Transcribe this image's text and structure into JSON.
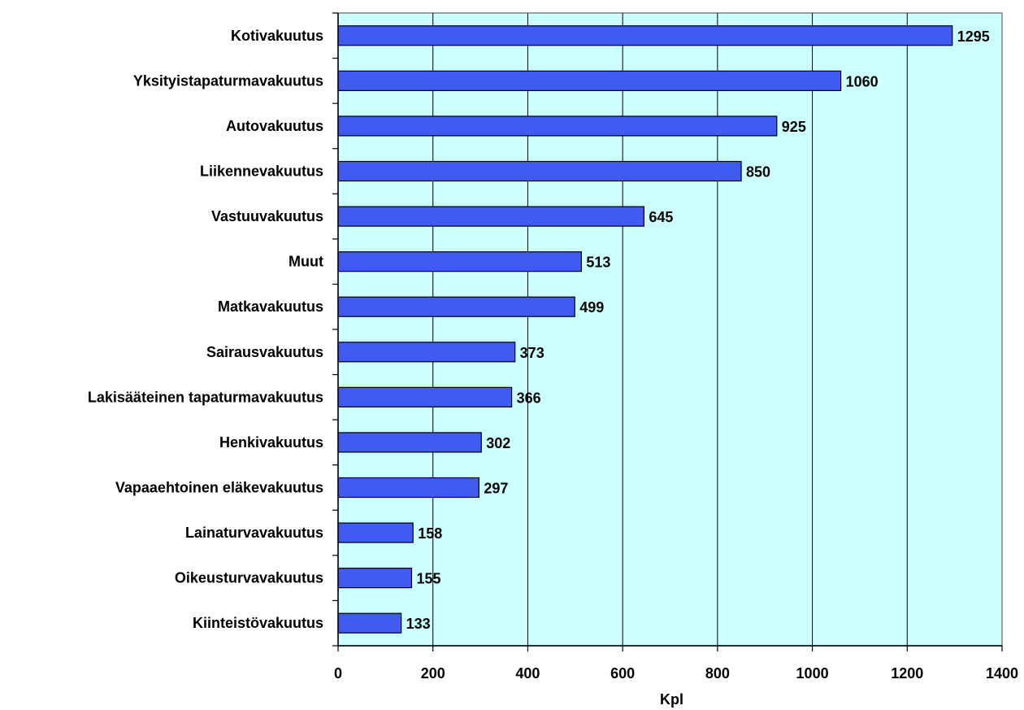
{
  "chart_data": {
    "type": "bar",
    "orientation": "horizontal",
    "categories": [
      "Kotivakuutus",
      "Yksityistapaturmavakuutus",
      "Autovakuutus",
      "Liikennevakuutus",
      "Vastuuvakuutus",
      "Muut",
      "Matkavakuutus",
      "Sairausvakuutus",
      "Lakisääteinen tapaturmavakuutus",
      "Henkivakuutus",
      "Vapaaehtoinen eläkevakuutus",
      "Lainaturvavakuutus",
      "Oikeusturvavakuutus",
      "Kiinteistövakuutus"
    ],
    "values": [
      1295,
      1060,
      925,
      850,
      645,
      513,
      499,
      373,
      366,
      302,
      297,
      158,
      155,
      133
    ],
    "xlabel": "Kpl",
    "ylabel": "",
    "xlim": [
      0,
      1400
    ],
    "xticks": [
      "0",
      "200",
      "400",
      "600",
      "800",
      "1000",
      "1200",
      "1400"
    ],
    "grid": "vertical",
    "legend": "none",
    "colors": {
      "bar": "#3f5bf0",
      "bar_border": "#000000",
      "plot_background": "#ccffff",
      "gridline": "#000000"
    }
  }
}
